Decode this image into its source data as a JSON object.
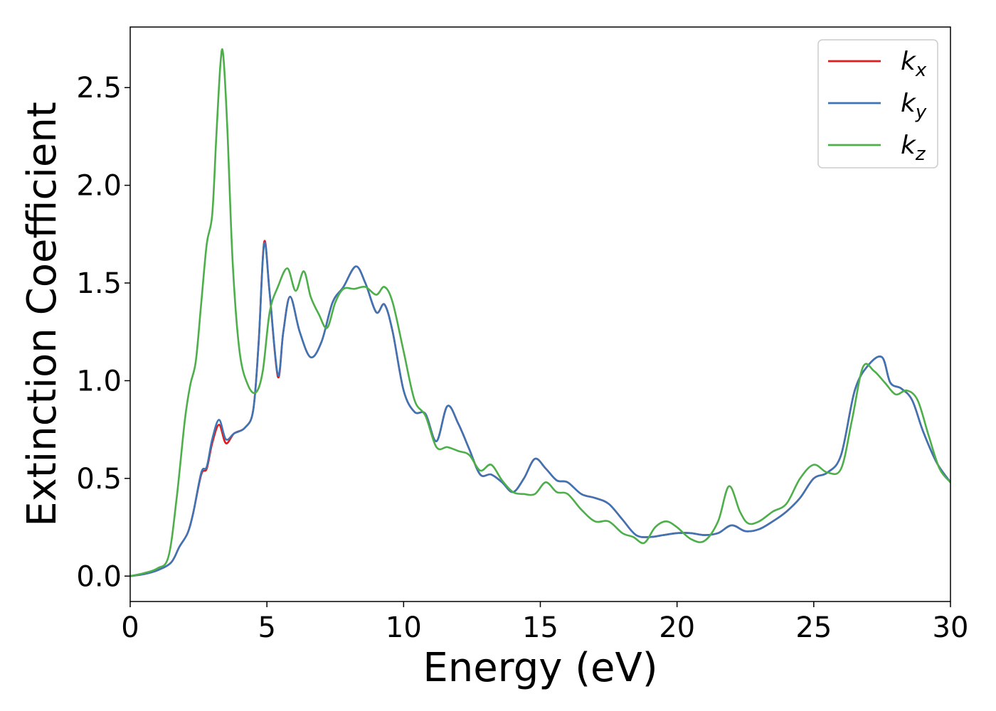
{
  "chart_data": {
    "type": "line",
    "title": "",
    "xlabel": "Energy (eV)",
    "ylabel": "Extinction Coefficient",
    "xlim": [
      0,
      30
    ],
    "ylim": [
      -0.13,
      2.81
    ],
    "xticks": [
      0,
      5,
      10,
      15,
      20,
      25,
      30
    ],
    "xtick_labels": [
      "0",
      "5",
      "10",
      "15",
      "20",
      "25",
      "30"
    ],
    "yticks": [
      0.0,
      0.5,
      1.0,
      1.5,
      2.0,
      2.5
    ],
    "ytick_labels": [
      "0.0",
      "0.5",
      "1.0",
      "1.5",
      "2.0",
      "2.5"
    ],
    "grid": false,
    "legend_position": "top-right",
    "series": [
      {
        "name": "k",
        "subscript": "x",
        "color": "#e41a1c",
        "points": [
          [
            0,
            0
          ],
          [
            0.5,
            0.01
          ],
          [
            1.0,
            0.03
          ],
          [
            1.5,
            0.07
          ],
          [
            1.8,
            0.15
          ],
          [
            2.1,
            0.22
          ],
          [
            2.3,
            0.32
          ],
          [
            2.6,
            0.52
          ],
          [
            2.8,
            0.55
          ],
          [
            3.0,
            0.68
          ],
          [
            3.25,
            0.775
          ],
          [
            3.5,
            0.68
          ],
          [
            3.8,
            0.73
          ],
          [
            4.2,
            0.76
          ],
          [
            4.5,
            0.85
          ],
          [
            4.7,
            1.2
          ],
          [
            4.9,
            1.71
          ],
          [
            5.1,
            1.45
          ],
          [
            5.4,
            1.02
          ],
          [
            5.6,
            1.25
          ],
          [
            5.85,
            1.43
          ],
          [
            6.2,
            1.25
          ],
          [
            6.6,
            1.12
          ],
          [
            7.0,
            1.2
          ],
          [
            7.4,
            1.4
          ],
          [
            7.8,
            1.48
          ],
          [
            8.25,
            1.585
          ],
          [
            8.6,
            1.5
          ],
          [
            9.0,
            1.35
          ],
          [
            9.3,
            1.39
          ],
          [
            9.6,
            1.25
          ],
          [
            10.0,
            0.95
          ],
          [
            10.4,
            0.84
          ],
          [
            10.8,
            0.83
          ],
          [
            11.2,
            0.69
          ],
          [
            11.6,
            0.87
          ],
          [
            12.0,
            0.78
          ],
          [
            12.4,
            0.65
          ],
          [
            12.8,
            0.52
          ],
          [
            13.2,
            0.52
          ],
          [
            13.6,
            0.48
          ],
          [
            14.0,
            0.43
          ],
          [
            14.4,
            0.5
          ],
          [
            14.8,
            0.6
          ],
          [
            15.2,
            0.55
          ],
          [
            15.6,
            0.49
          ],
          [
            16.0,
            0.48
          ],
          [
            16.5,
            0.42
          ],
          [
            17.0,
            0.4
          ],
          [
            17.5,
            0.37
          ],
          [
            18.0,
            0.29
          ],
          [
            18.5,
            0.21
          ],
          [
            19.0,
            0.2
          ],
          [
            19.5,
            0.21
          ],
          [
            20.0,
            0.22
          ],
          [
            20.5,
            0.22
          ],
          [
            21.0,
            0.21
          ],
          [
            21.5,
            0.22
          ],
          [
            22.0,
            0.26
          ],
          [
            22.5,
            0.23
          ],
          [
            23.0,
            0.24
          ],
          [
            23.5,
            0.28
          ],
          [
            24.0,
            0.33
          ],
          [
            24.5,
            0.4
          ],
          [
            25.0,
            0.5
          ],
          [
            25.5,
            0.53
          ],
          [
            26.0,
            0.62
          ],
          [
            26.5,
            0.95
          ],
          [
            27.0,
            1.08
          ],
          [
            27.5,
            1.12
          ],
          [
            27.8,
            0.99
          ],
          [
            28.2,
            0.96
          ],
          [
            28.6,
            0.9
          ],
          [
            29.0,
            0.74
          ],
          [
            29.5,
            0.58
          ],
          [
            30.0,
            0.48
          ]
        ]
      },
      {
        "name": "k",
        "subscript": "y",
        "color": "#3d74b5",
        "points": [
          [
            0,
            0
          ],
          [
            0.5,
            0.01
          ],
          [
            1.0,
            0.03
          ],
          [
            1.5,
            0.07
          ],
          [
            1.8,
            0.15
          ],
          [
            2.1,
            0.22
          ],
          [
            2.3,
            0.32
          ],
          [
            2.6,
            0.53
          ],
          [
            2.8,
            0.56
          ],
          [
            3.0,
            0.7
          ],
          [
            3.25,
            0.8
          ],
          [
            3.5,
            0.7
          ],
          [
            3.8,
            0.73
          ],
          [
            4.2,
            0.76
          ],
          [
            4.5,
            0.85
          ],
          [
            4.7,
            1.2
          ],
          [
            4.9,
            1.7
          ],
          [
            5.1,
            1.45
          ],
          [
            5.4,
            1.03
          ],
          [
            5.6,
            1.25
          ],
          [
            5.85,
            1.43
          ],
          [
            6.2,
            1.25
          ],
          [
            6.6,
            1.12
          ],
          [
            7.0,
            1.2
          ],
          [
            7.4,
            1.4
          ],
          [
            7.8,
            1.48
          ],
          [
            8.25,
            1.585
          ],
          [
            8.6,
            1.5
          ],
          [
            9.0,
            1.35
          ],
          [
            9.3,
            1.39
          ],
          [
            9.6,
            1.25
          ],
          [
            10.0,
            0.95
          ],
          [
            10.4,
            0.84
          ],
          [
            10.8,
            0.83
          ],
          [
            11.2,
            0.69
          ],
          [
            11.6,
            0.87
          ],
          [
            12.0,
            0.78
          ],
          [
            12.4,
            0.65
          ],
          [
            12.8,
            0.52
          ],
          [
            13.2,
            0.52
          ],
          [
            13.6,
            0.48
          ],
          [
            14.0,
            0.43
          ],
          [
            14.4,
            0.5
          ],
          [
            14.8,
            0.6
          ],
          [
            15.2,
            0.55
          ],
          [
            15.6,
            0.49
          ],
          [
            16.0,
            0.48
          ],
          [
            16.5,
            0.42
          ],
          [
            17.0,
            0.4
          ],
          [
            17.5,
            0.37
          ],
          [
            18.0,
            0.29
          ],
          [
            18.5,
            0.21
          ],
          [
            19.0,
            0.2
          ],
          [
            19.5,
            0.21
          ],
          [
            20.0,
            0.22
          ],
          [
            20.5,
            0.22
          ],
          [
            21.0,
            0.21
          ],
          [
            21.5,
            0.22
          ],
          [
            22.0,
            0.26
          ],
          [
            22.5,
            0.23
          ],
          [
            23.0,
            0.24
          ],
          [
            23.5,
            0.28
          ],
          [
            24.0,
            0.33
          ],
          [
            24.5,
            0.4
          ],
          [
            25.0,
            0.5
          ],
          [
            25.5,
            0.53
          ],
          [
            26.0,
            0.62
          ],
          [
            26.5,
            0.95
          ],
          [
            27.0,
            1.08
          ],
          [
            27.5,
            1.12
          ],
          [
            27.8,
            0.99
          ],
          [
            28.2,
            0.96
          ],
          [
            28.6,
            0.9
          ],
          [
            29.0,
            0.74
          ],
          [
            29.5,
            0.58
          ],
          [
            30.0,
            0.48
          ]
        ]
      },
      {
        "name": "k",
        "subscript": "z",
        "color": "#4daf4a",
        "points": [
          [
            0,
            0
          ],
          [
            0.5,
            0.015
          ],
          [
            1.0,
            0.04
          ],
          [
            1.4,
            0.1
          ],
          [
            1.7,
            0.4
          ],
          [
            2.0,
            0.8
          ],
          [
            2.2,
            0.98
          ],
          [
            2.4,
            1.1
          ],
          [
            2.6,
            1.4
          ],
          [
            2.8,
            1.7
          ],
          [
            3.0,
            1.85
          ],
          [
            3.15,
            2.25
          ],
          [
            3.3,
            2.62
          ],
          [
            3.4,
            2.67
          ],
          [
            3.55,
            2.3
          ],
          [
            3.75,
            1.6
          ],
          [
            4.0,
            1.15
          ],
          [
            4.3,
            0.98
          ],
          [
            4.6,
            0.94
          ],
          [
            4.85,
            1.05
          ],
          [
            5.1,
            1.35
          ],
          [
            5.4,
            1.48
          ],
          [
            5.75,
            1.575
          ],
          [
            6.05,
            1.46
          ],
          [
            6.35,
            1.56
          ],
          [
            6.6,
            1.43
          ],
          [
            6.9,
            1.34
          ],
          [
            7.2,
            1.27
          ],
          [
            7.5,
            1.4
          ],
          [
            7.8,
            1.47
          ],
          [
            8.2,
            1.47
          ],
          [
            8.6,
            1.48
          ],
          [
            9.0,
            1.44
          ],
          [
            9.3,
            1.48
          ],
          [
            9.6,
            1.4
          ],
          [
            10.0,
            1.15
          ],
          [
            10.4,
            0.9
          ],
          [
            10.8,
            0.82
          ],
          [
            11.2,
            0.66
          ],
          [
            11.6,
            0.66
          ],
          [
            12.0,
            0.64
          ],
          [
            12.4,
            0.62
          ],
          [
            12.8,
            0.54
          ],
          [
            13.2,
            0.57
          ],
          [
            13.6,
            0.49
          ],
          [
            14.0,
            0.43
          ],
          [
            14.4,
            0.42
          ],
          [
            14.8,
            0.42
          ],
          [
            15.2,
            0.48
          ],
          [
            15.6,
            0.43
          ],
          [
            16.0,
            0.42
          ],
          [
            16.5,
            0.34
          ],
          [
            17.0,
            0.28
          ],
          [
            17.5,
            0.28
          ],
          [
            18.0,
            0.22
          ],
          [
            18.4,
            0.2
          ],
          [
            18.8,
            0.17
          ],
          [
            19.2,
            0.25
          ],
          [
            19.6,
            0.28
          ],
          [
            20.0,
            0.25
          ],
          [
            20.5,
            0.19
          ],
          [
            21.0,
            0.18
          ],
          [
            21.5,
            0.28
          ],
          [
            21.9,
            0.46
          ],
          [
            22.3,
            0.33
          ],
          [
            22.6,
            0.27
          ],
          [
            23.0,
            0.28
          ],
          [
            23.5,
            0.33
          ],
          [
            24.0,
            0.37
          ],
          [
            24.5,
            0.5
          ],
          [
            25.0,
            0.57
          ],
          [
            25.5,
            0.53
          ],
          [
            26.0,
            0.55
          ],
          [
            26.4,
            0.8
          ],
          [
            26.8,
            1.07
          ],
          [
            27.2,
            1.05
          ],
          [
            27.6,
            0.99
          ],
          [
            28.0,
            0.93
          ],
          [
            28.4,
            0.95
          ],
          [
            28.8,
            0.9
          ],
          [
            29.2,
            0.72
          ],
          [
            29.6,
            0.55
          ],
          [
            30.0,
            0.48
          ]
        ]
      }
    ]
  }
}
